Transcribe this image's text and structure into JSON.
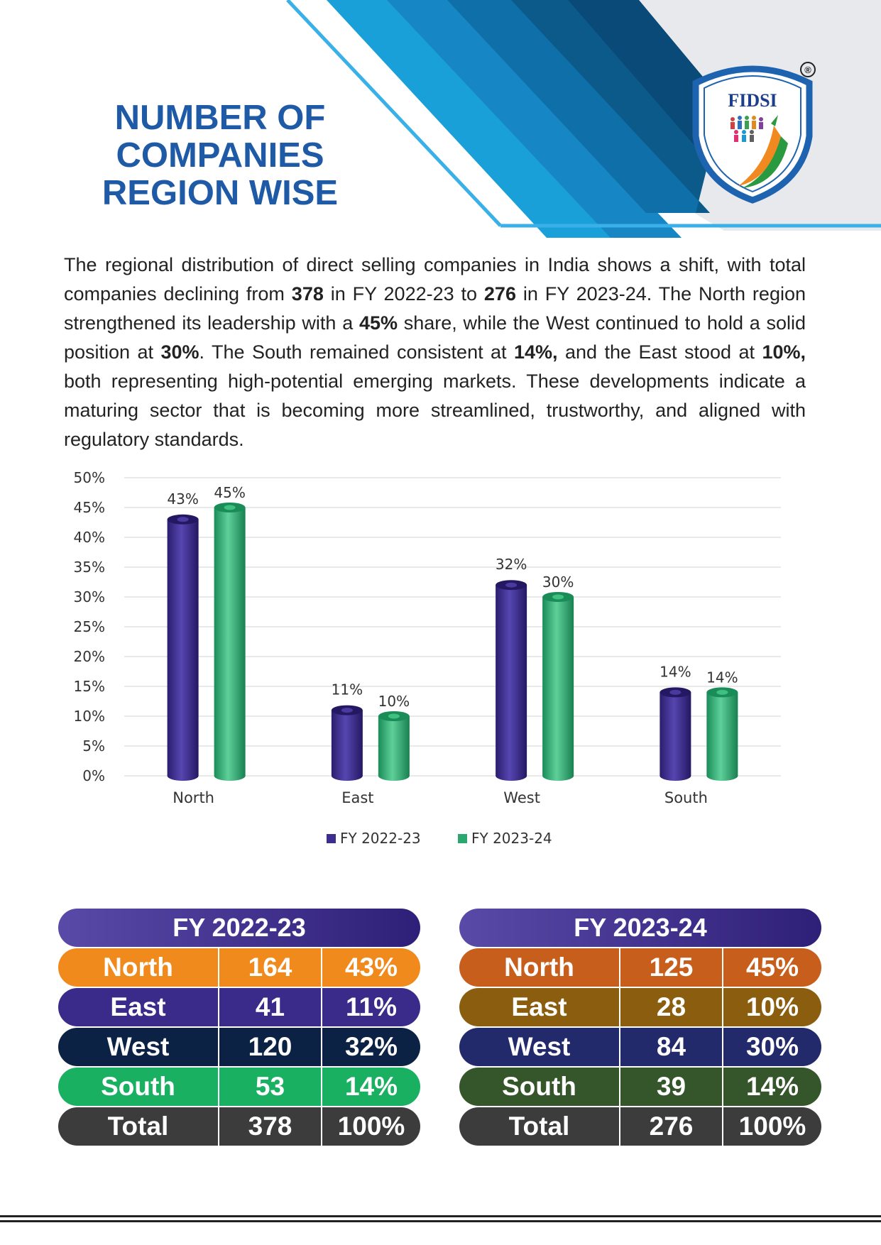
{
  "title_lines": [
    "NUMBER OF",
    "COMPANIES",
    "REGION WISE"
  ],
  "logo": {
    "text": "FIDSI",
    "registered": "®"
  },
  "paragraph": {
    "p1": "The regional distribution of direct selling companies in India shows a shift, with total companies declining from ",
    "b1": "378",
    "p2": " in FY 2022-23 to ",
    "b2": "276",
    "p3": " in FY 2023-24. The North region strengthened its leadership with a ",
    "b3": "45%",
    "p4": " share, while the West continued to hold a solid position at ",
    "b4": "30%",
    "p5": ". The South remained consistent at ",
    "b5": "14%,",
    "p6": " and the East stood at ",
    "b6": "10%,",
    "p7": " both representing high-potential emerging markets. These developments indicate a maturing sector that is becoming more streamlined, trustworthy, and aligned with regulatory standards."
  },
  "chart_data": {
    "type": "bar",
    "categories": [
      "North",
      "East",
      "West",
      "South"
    ],
    "series": [
      {
        "name": "FY 2022-23",
        "values": [
          43,
          11,
          32,
          14
        ],
        "labels": [
          "43%",
          "11%",
          "32%",
          "14%"
        ],
        "color": "#3d2d8c"
      },
      {
        "name": "FY 2023-24",
        "values": [
          45,
          10,
          30,
          14
        ],
        "labels": [
          "45%",
          "10%",
          "30%",
          "14%"
        ],
        "color": "#2aa870"
      }
    ],
    "ylim": [
      0,
      50
    ],
    "yticks": [
      "0%",
      "5%",
      "10%",
      "15%",
      "20%",
      "25%",
      "30%",
      "35%",
      "40%",
      "45%",
      "50%"
    ],
    "legend": "bottom",
    "title": "",
    "xlabel": "",
    "ylabel": ""
  },
  "tables": [
    {
      "header": "FY 2022-23",
      "rows": [
        {
          "region": "North",
          "count": "164",
          "share": "43%",
          "color": "#f08a1c"
        },
        {
          "region": "East",
          "count": "41",
          "share": "11%",
          "color": "#3a2a8a"
        },
        {
          "region": "West",
          "count": "120",
          "share": "32%",
          "color": "#0c2245"
        },
        {
          "region": "South",
          "count": "53",
          "share": "14%",
          "color": "#1ab062"
        },
        {
          "region": "Total",
          "count": "378",
          "share": "100%",
          "color": "#3c3c3c"
        }
      ]
    },
    {
      "header": "FY 2023-24",
      "rows": [
        {
          "region": "North",
          "count": "125",
          "share": "45%",
          "color": "#c85e1c"
        },
        {
          "region": "East",
          "count": "28",
          "share": "10%",
          "color": "#8a5e0e"
        },
        {
          "region": "West",
          "count": "84",
          "share": "30%",
          "color": "#232a6c"
        },
        {
          "region": "South",
          "count": "39",
          "share": "14%",
          "color": "#35552a"
        },
        {
          "region": "Total",
          "count": "276",
          "share": "100%",
          "color": "#3c3c3c"
        }
      ]
    }
  ]
}
